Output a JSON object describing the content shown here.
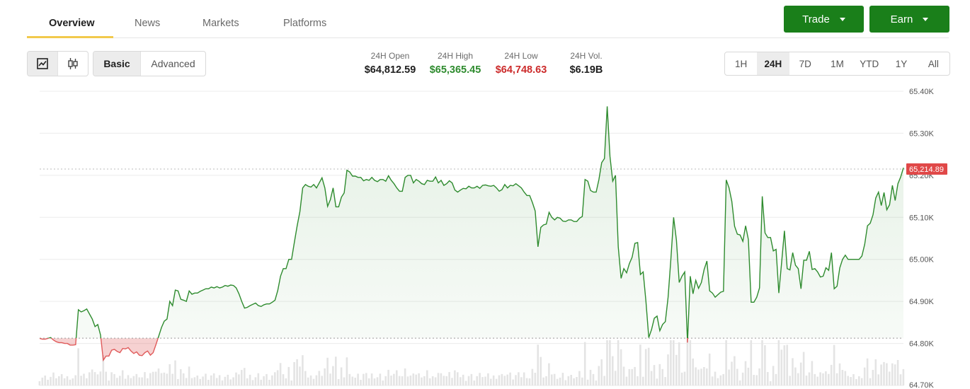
{
  "nav": {
    "tabs": [
      {
        "label": "Overview",
        "active": true
      },
      {
        "label": "News",
        "active": false
      },
      {
        "label": "Markets",
        "active": false
      },
      {
        "label": "Platforms",
        "active": false
      }
    ],
    "trade_label": "Trade",
    "earn_label": "Earn",
    "accent": "#1a7f1a"
  },
  "toolbar": {
    "chart_type_icons": [
      "line-chart-icon",
      "candlestick-icon"
    ],
    "modes": [
      {
        "label": "Basic",
        "active": true
      },
      {
        "label": "Advanced",
        "active": false
      }
    ],
    "ranges": [
      {
        "label": "1H",
        "active": false
      },
      {
        "label": "24H",
        "active": true
      },
      {
        "label": "7D",
        "active": false
      },
      {
        "label": "1M",
        "active": false
      },
      {
        "label": "YTD",
        "active": false
      },
      {
        "label": "1Y",
        "active": false
      },
      {
        "label": "All",
        "active": false
      }
    ]
  },
  "stats": {
    "open": {
      "label": "24H Open",
      "value": "$64,812.59",
      "color": "#1f1f1f"
    },
    "high": {
      "label": "24H High",
      "value": "$65,365.45",
      "color": "#2e8b2e"
    },
    "low": {
      "label": "24H Low",
      "value": "$64,748.63",
      "color": "#cc2b2b"
    },
    "vol": {
      "label": "24H Vol.",
      "value": "$6.19B",
      "color": "#1f1f1f"
    }
  },
  "chart_data": {
    "type": "area",
    "ylim": [
      64700,
      65400
    ],
    "yticks": [
      "65.40K",
      "65.30K",
      "65.20K",
      "65.10K",
      "65.00K",
      "64.90K",
      "64.80K",
      "64.70K"
    ],
    "baseline": 64812.59,
    "current_price": 65214.89,
    "current_price_label": "65,214.89",
    "up_color": "#2e8b2e",
    "down_color": "#e05a5a",
    "y": [
      64812,
      64810,
      64810,
      64812,
      64814,
      64808,
      64804,
      64802,
      64802,
      64800,
      64800,
      64796,
      64796,
      64797,
      64880,
      64875,
      64878,
      64882,
      64870,
      64858,
      64840,
      64845,
      64820,
      64760,
      64770,
      64770,
      64784,
      64786,
      64781,
      64778,
      64788,
      64787,
      64790,
      64782,
      64776,
      64780,
      64772,
      64771,
      64778,
      64782,
      64772,
      64778,
      64797,
      64817,
      64838,
      64853,
      64858,
      64900,
      64890,
      64927,
      64925,
      64905,
      64903,
      64900,
      64925,
      64917,
      64920,
      64920,
      64924,
      64927,
      64930,
      64930,
      64934,
      64932,
      64935,
      64932,
      64934,
      64938,
      64936,
      64939,
      64938,
      64932,
      64918,
      64900,
      64884,
      64886,
      64890,
      64893,
      64896,
      64890,
      64888,
      64892,
      64894,
      64894,
      64898,
      64903,
      64926,
      64960,
      64978,
      64978,
      65000,
      65000,
      65040,
      65080,
      65114,
      65170,
      65178,
      65174,
      65172,
      65178,
      65170,
      65182,
      65194,
      65170,
      65126,
      65142,
      65170,
      65125,
      65125,
      65148,
      65158,
      65212,
      65208,
      65198,
      65198,
      65195,
      65195,
      65187,
      65190,
      65188,
      65195,
      65188,
      65185,
      65190,
      65190,
      65186,
      65199,
      65188,
      65180,
      65170,
      65162,
      65162,
      65195,
      65200,
      65200,
      65182,
      65190,
      65186,
      65180,
      65178,
      65188,
      65186,
      65186,
      65196,
      65182,
      65188,
      65176,
      65180,
      65187,
      65182,
      65165,
      65160,
      65165,
      65169,
      65168,
      65174,
      65170,
      65170,
      65174,
      65169,
      65176,
      65177,
      65175,
      65174,
      65176,
      65170,
      65162,
      65166,
      65178,
      65170,
      65176,
      65175,
      65180,
      65175,
      65170,
      65160,
      65152,
      65152,
      65135,
      65115,
      65030,
      65076,
      65082,
      65084,
      65112,
      65100,
      65094,
      65100,
      65098,
      65091,
      65090,
      65094,
      65094,
      65090,
      65090,
      65098,
      65102,
      65190,
      65186,
      65164,
      65160,
      65160,
      65190,
      65230,
      65240,
      65364,
      65245,
      65186,
      65200,
      65030,
      64955,
      64978,
      64968,
      64990,
      65005,
      65038,
      65040,
      64964,
      64970,
      64900,
      64814,
      64833,
      64860,
      64865,
      64830,
      64845,
      64852,
      64910,
      65000,
      65100,
      65045,
      64945,
      64960,
      64970,
      64802,
      64960,
      64918,
      64950,
      64931,
      64945,
      64976,
      64996,
      64925,
      64920,
      64910,
      64916,
      64922,
      64924,
      65189,
      65170,
      65138,
      65079,
      65060,
      65058,
      65043,
      65080,
      65047,
      64898,
      64898,
      64910,
      64932,
      65150,
      65063,
      65052,
      65052,
      65020,
      65024,
      64920,
      64992,
      65068,
      64978,
      64975,
      65016,
      64986,
      64978,
      64930,
      64998,
      64998,
      65019,
      64976,
      64978,
      64970,
      64958,
      64960,
      64980,
      64974,
      65016,
      64930,
      64936,
      64980,
      65000,
      65010,
      65000,
      65000,
      65000,
      65000,
      65000,
      65008,
      65036,
      65080,
      65086,
      65106,
      65146,
      65160,
      65128,
      65159,
      65118,
      65130,
      65176,
      65140,
      65180,
      65196,
      65218
    ]
  }
}
